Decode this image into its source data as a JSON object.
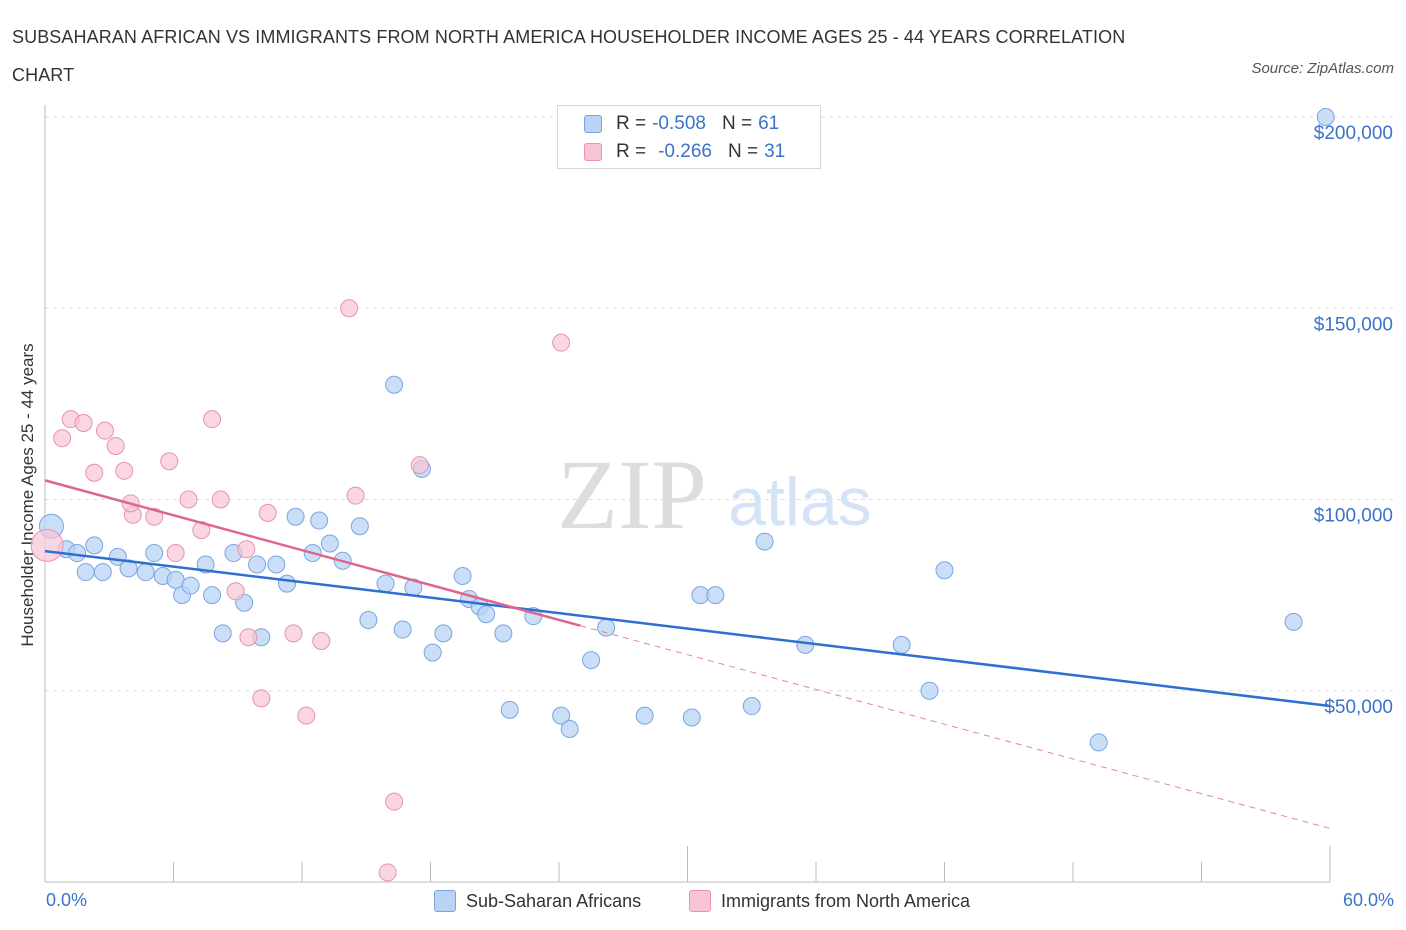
{
  "header": {
    "title": "SUBSAHARAN AFRICAN VS IMMIGRANTS FROM NORTH AMERICA HOUSEHOLDER INCOME AGES 25 - 44 YEARS CORRELATION CHART",
    "source": "Source: ZipAtlas.com"
  },
  "legend": {
    "r_label": "R =",
    "n_label": "N =",
    "items": [
      {
        "r": "-0.508",
        "n": "61"
      },
      {
        "r": "-0.266",
        "n": "31"
      }
    ]
  },
  "colors": {
    "blue_fill": "#b8d3f4",
    "blue_stroke": "#7aa6df",
    "blue_line": "#2f6fd0",
    "pink_fill": "#f7c5d5",
    "pink_stroke": "#e893ae",
    "pink_line": "#e0658d",
    "axis_text": "#3a73c9",
    "grid": "#dddddd"
  },
  "watermark": {
    "zip": "ZIP",
    "atlas": "atlas"
  },
  "chart_data": {
    "type": "scatter",
    "title": "SUBSAHARAN AFRICAN VS IMMIGRANTS FROM NORTH AMERICA HOUSEHOLDER INCOME AGES 25 - 44 YEARS CORRELATION CHART",
    "xlabel": "",
    "ylabel": "Householder Income Ages 25 - 44 years",
    "xlim": [
      0,
      60
    ],
    "ylim": [
      0,
      200000
    ],
    "x_tick_labels": [
      "0.0%",
      "60.0%"
    ],
    "y_ticks": [
      50000,
      100000,
      150000,
      200000
    ],
    "y_tick_labels": [
      "$50,000",
      "$100,000",
      "$150,000",
      "$200,000"
    ],
    "grid": true,
    "legend_position": "bottom",
    "series": [
      {
        "name": "Sub-Saharan Africans",
        "r": -0.508,
        "n": 61,
        "trend": {
          "x": [
            0,
            60
          ],
          "y": [
            86500,
            46000
          ]
        },
        "points": [
          [
            0.3,
            93000
          ],
          [
            1.0,
            87000
          ],
          [
            1.5,
            86000
          ],
          [
            1.9,
            81000
          ],
          [
            2.3,
            88000
          ],
          [
            2.7,
            81000
          ],
          [
            3.4,
            85000
          ],
          [
            3.9,
            82000
          ],
          [
            4.7,
            81000
          ],
          [
            5.1,
            86000
          ],
          [
            5.5,
            80000
          ],
          [
            6.1,
            79000
          ],
          [
            6.4,
            75000
          ],
          [
            6.8,
            77500
          ],
          [
            7.5,
            83000
          ],
          [
            7.8,
            75000
          ],
          [
            8.3,
            65000
          ],
          [
            8.8,
            86000
          ],
          [
            9.3,
            73000
          ],
          [
            9.9,
            83000
          ],
          [
            10.1,
            64000
          ],
          [
            10.8,
            83000
          ],
          [
            11.3,
            78000
          ],
          [
            11.7,
            95500
          ],
          [
            12.5,
            86000
          ],
          [
            12.8,
            94500
          ],
          [
            13.3,
            88500
          ],
          [
            13.9,
            84000
          ],
          [
            14.7,
            93000
          ],
          [
            15.1,
            68500
          ],
          [
            15.9,
            78000
          ],
          [
            16.3,
            130000
          ],
          [
            16.7,
            66000
          ],
          [
            17.2,
            77000
          ],
          [
            17.6,
            108000
          ],
          [
            18.1,
            60000
          ],
          [
            18.6,
            65000
          ],
          [
            19.5,
            80000
          ],
          [
            19.8,
            74000
          ],
          [
            20.3,
            72000
          ],
          [
            20.6,
            70000
          ],
          [
            21.4,
            65000
          ],
          [
            21.7,
            45000
          ],
          [
            22.8,
            69500
          ],
          [
            24.1,
            43500
          ],
          [
            24.5,
            40000
          ],
          [
            25.5,
            58000
          ],
          [
            26.2,
            66500
          ],
          [
            28.0,
            43500
          ],
          [
            30.2,
            43000
          ],
          [
            30.6,
            75000
          ],
          [
            31.3,
            75000
          ],
          [
            33.0,
            46000
          ],
          [
            33.6,
            89000
          ],
          [
            35.5,
            62000
          ],
          [
            40.0,
            62000
          ],
          [
            41.3,
            50000
          ],
          [
            42.0,
            81500
          ],
          [
            49.2,
            36500
          ],
          [
            58.3,
            68000
          ],
          [
            59.8,
            200000
          ]
        ]
      },
      {
        "name": "Immigrants from North America",
        "r": -0.266,
        "n": 31,
        "trend": {
          "x": [
            0,
            25
          ],
          "y": [
            105000,
            67000
          ]
        },
        "trend_extension": {
          "x": [
            25,
            60
          ],
          "y": [
            67000,
            14000
          ]
        },
        "points": [
          [
            0.1,
            88000
          ],
          [
            0.8,
            116000
          ],
          [
            1.2,
            121000
          ],
          [
            1.8,
            120000
          ],
          [
            2.3,
            107000
          ],
          [
            2.8,
            118000
          ],
          [
            3.3,
            114000
          ],
          [
            3.7,
            107500
          ],
          [
            4.1,
            96000
          ],
          [
            5.1,
            95500
          ],
          [
            5.8,
            110000
          ],
          [
            6.1,
            86000
          ],
          [
            6.7,
            100000
          ],
          [
            7.3,
            92000
          ],
          [
            7.8,
            121000
          ],
          [
            8.2,
            100000
          ],
          [
            8.9,
            76000
          ],
          [
            9.4,
            87000
          ],
          [
            9.5,
            64000
          ],
          [
            10.1,
            48000
          ],
          [
            10.4,
            96500
          ],
          [
            11.6,
            65000
          ],
          [
            12.2,
            43500
          ],
          [
            12.9,
            63000
          ],
          [
            14.2,
            150000
          ],
          [
            14.5,
            101000
          ],
          [
            16.0,
            2500
          ],
          [
            16.3,
            21000
          ],
          [
            17.5,
            109000
          ],
          [
            24.1,
            141000
          ],
          [
            4.0,
            99000
          ]
        ]
      }
    ]
  },
  "bottom_legend": {
    "series1": "Sub-Saharan Africans",
    "series2": "Immigrants from North America"
  }
}
